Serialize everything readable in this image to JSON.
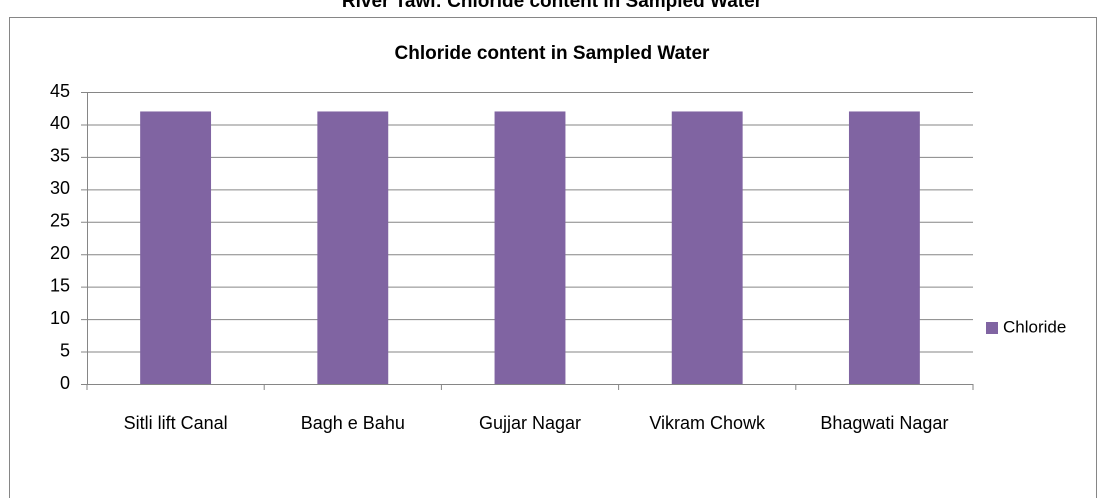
{
  "chart_data": {
    "type": "bar",
    "suptitle": "River Tawi: Chloride content in Sampled Water",
    "title": "Chloride content in Sampled Water",
    "categories": [
      "Sitli lift Canal",
      "Bagh e Bahu",
      "Gujjar Nagar",
      "Vikram Chowk",
      "Bhagwati Nagar"
    ],
    "series": [
      {
        "name": "Chloride",
        "color": "#8064a2",
        "values": [
          42,
          42,
          42,
          42,
          42
        ]
      }
    ],
    "ylim": [
      0,
      45
    ],
    "yticks": [
      0,
      5,
      10,
      15,
      20,
      25,
      30,
      35,
      40,
      45
    ],
    "grid": true,
    "legend": "right"
  }
}
